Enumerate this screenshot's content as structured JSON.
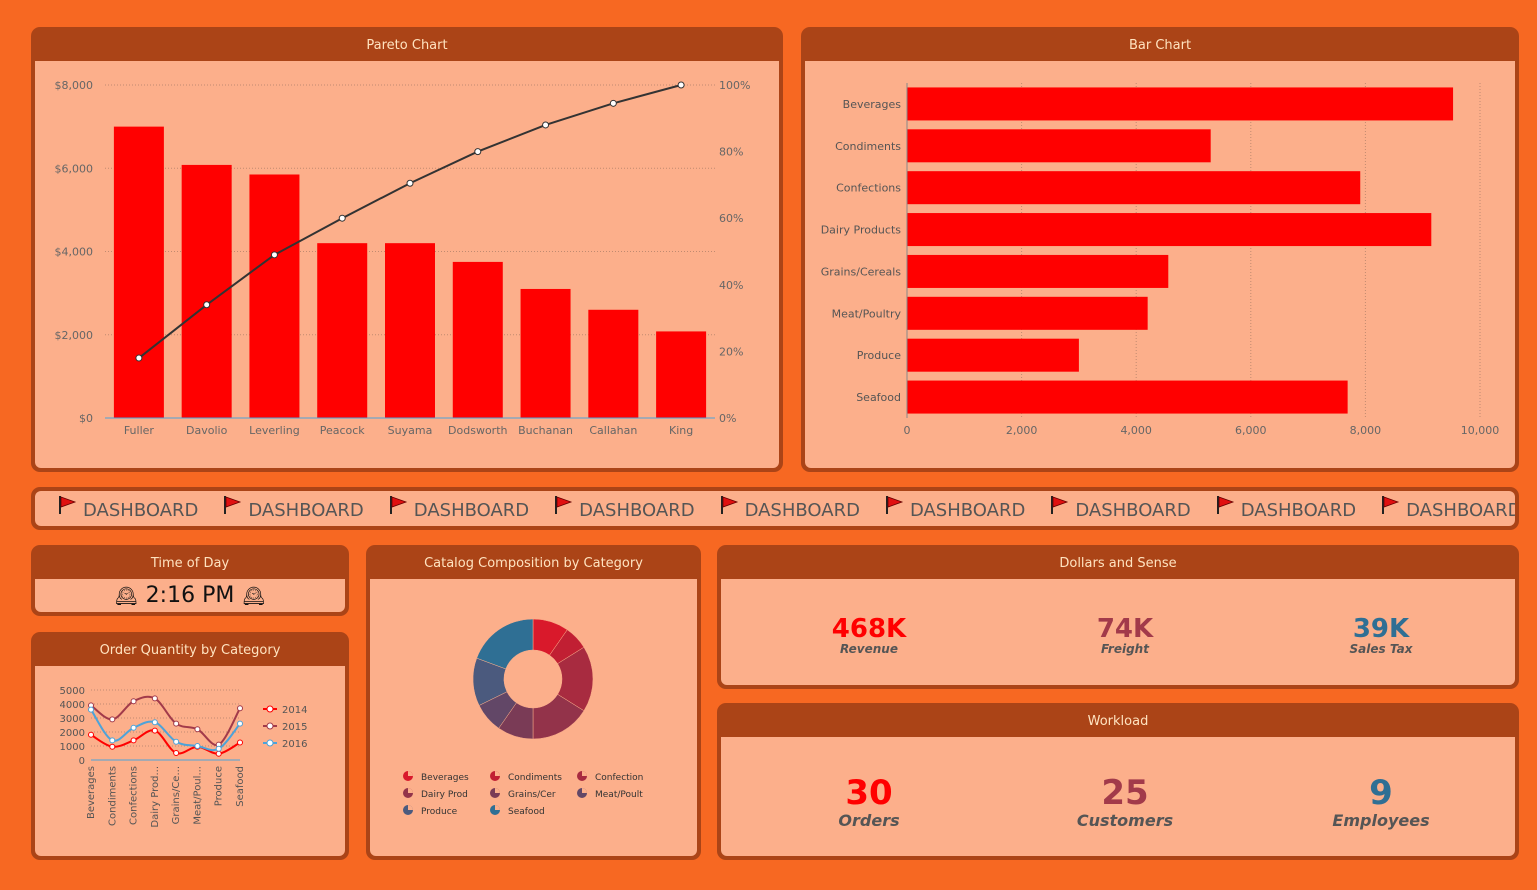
{
  "panels": {
    "pareto_title": "Pareto Chart",
    "bar_title": "Bar Chart",
    "time_title": "Time of Day",
    "catalog_title": "Catalog Composition by Category",
    "dollars_title": "Dollars and Sense",
    "order_title": "Order Quantity by Category",
    "workload_title": "Workload"
  },
  "ticker": {
    "text": "DASHBOARD",
    "repeat": 10,
    "flag_icon": "red-flag-icon"
  },
  "clock": {
    "time": "2:16 PM",
    "icon": "mantelpiece-clock-icon"
  },
  "dollars": [
    {
      "value": "468K",
      "label": "Revenue",
      "color": "#ff0000"
    },
    {
      "value": "74K",
      "label": "Freight",
      "color": "#a23a4a"
    },
    {
      "value": "39K",
      "label": "Sales Tax",
      "color": "#2f6f94"
    }
  ],
  "workload": [
    {
      "value": "30",
      "label": "Orders",
      "color": "#ff0000"
    },
    {
      "value": "25",
      "label": "Customers",
      "color": "#a23a4a"
    },
    {
      "value": "9",
      "label": "Employees",
      "color": "#2f6f94"
    }
  ],
  "chart_data": [
    {
      "type": "bar",
      "id": "pareto",
      "title": "Pareto Chart",
      "categories": [
        "Fuller",
        "Davolio",
        "Leverling",
        "Peacock",
        "Suyama",
        "Dodsworth",
        "Buchanan",
        "Callahan",
        "King"
      ],
      "values": [
        7000,
        6080,
        5850,
        4200,
        4200,
        3750,
        3100,
        2600,
        2080
      ],
      "cumulative_percent": [
        18,
        34,
        49,
        60,
        70.5,
        80,
        88,
        94.5,
        100
      ],
      "ylim": [
        0,
        8000
      ],
      "yticks": [
        "$0",
        "$2,000",
        "$4,000",
        "$6,000",
        "$8,000"
      ],
      "y2ticks": [
        "0%",
        "20%",
        "40%",
        "60%",
        "80%",
        "100%"
      ],
      "bar_color": "#ff0000",
      "line_color": "#333333"
    },
    {
      "type": "bar",
      "id": "bar",
      "orientation": "horizontal",
      "title": "Bar Chart",
      "categories": [
        "Beverages",
        "Condiments",
        "Confections",
        "Dairy Products",
        "Grains/Cereals",
        "Meat/Poultry",
        "Produce",
        "Seafood"
      ],
      "values": [
        9530,
        5300,
        7910,
        9150,
        4560,
        4200,
        3000,
        7690
      ],
      "xlim": [
        0,
        10000
      ],
      "xticks": [
        "0",
        "2,000",
        "4,000",
        "6,000",
        "8,000",
        "10,000"
      ],
      "bar_color": "#ff0000"
    },
    {
      "type": "pie",
      "id": "catalog",
      "title": "Catalog Composition by Category",
      "donut": true,
      "categories": [
        "Beverages",
        "Condiments",
        "Confection",
        "Dairy Prod",
        "Grains/Cer",
        "Meat/Poult",
        "Produce",
        "Seafood"
      ],
      "values": [
        6,
        4,
        11,
        10,
        6,
        5,
        8,
        12
      ],
      "colors": [
        "#d9192b",
        "#c11f33",
        "#a82b40",
        "#93334a",
        "#7a3b56",
        "#624767",
        "#4b5a7e",
        "#2f6f94"
      ]
    },
    {
      "type": "line",
      "id": "orders",
      "title": "Order Quantity by Category",
      "categories": [
        "Beverages",
        "Condiments",
        "Confections",
        "Dairy Prod...",
        "Grains/Ce...",
        "Meat/Poul...",
        "Produce",
        "Seafood"
      ],
      "series": [
        {
          "name": "2014",
          "values": [
            1800,
            950,
            1400,
            2100,
            500,
            950,
            450,
            1250
          ],
          "color": "#ff0000"
        },
        {
          "name": "2015",
          "values": [
            3900,
            2900,
            4200,
            4400,
            2600,
            2200,
            1100,
            3700
          ],
          "color": "#a23a4a"
        },
        {
          "name": "2016",
          "values": [
            3600,
            1400,
            2300,
            2700,
            1300,
            1000,
            800,
            2600
          ],
          "color": "#4da3d9"
        }
      ],
      "ylim": [
        0,
        5000
      ],
      "yticks": [
        "0",
        "1000",
        "2000",
        "3000",
        "4000",
        "5000"
      ]
    }
  ]
}
